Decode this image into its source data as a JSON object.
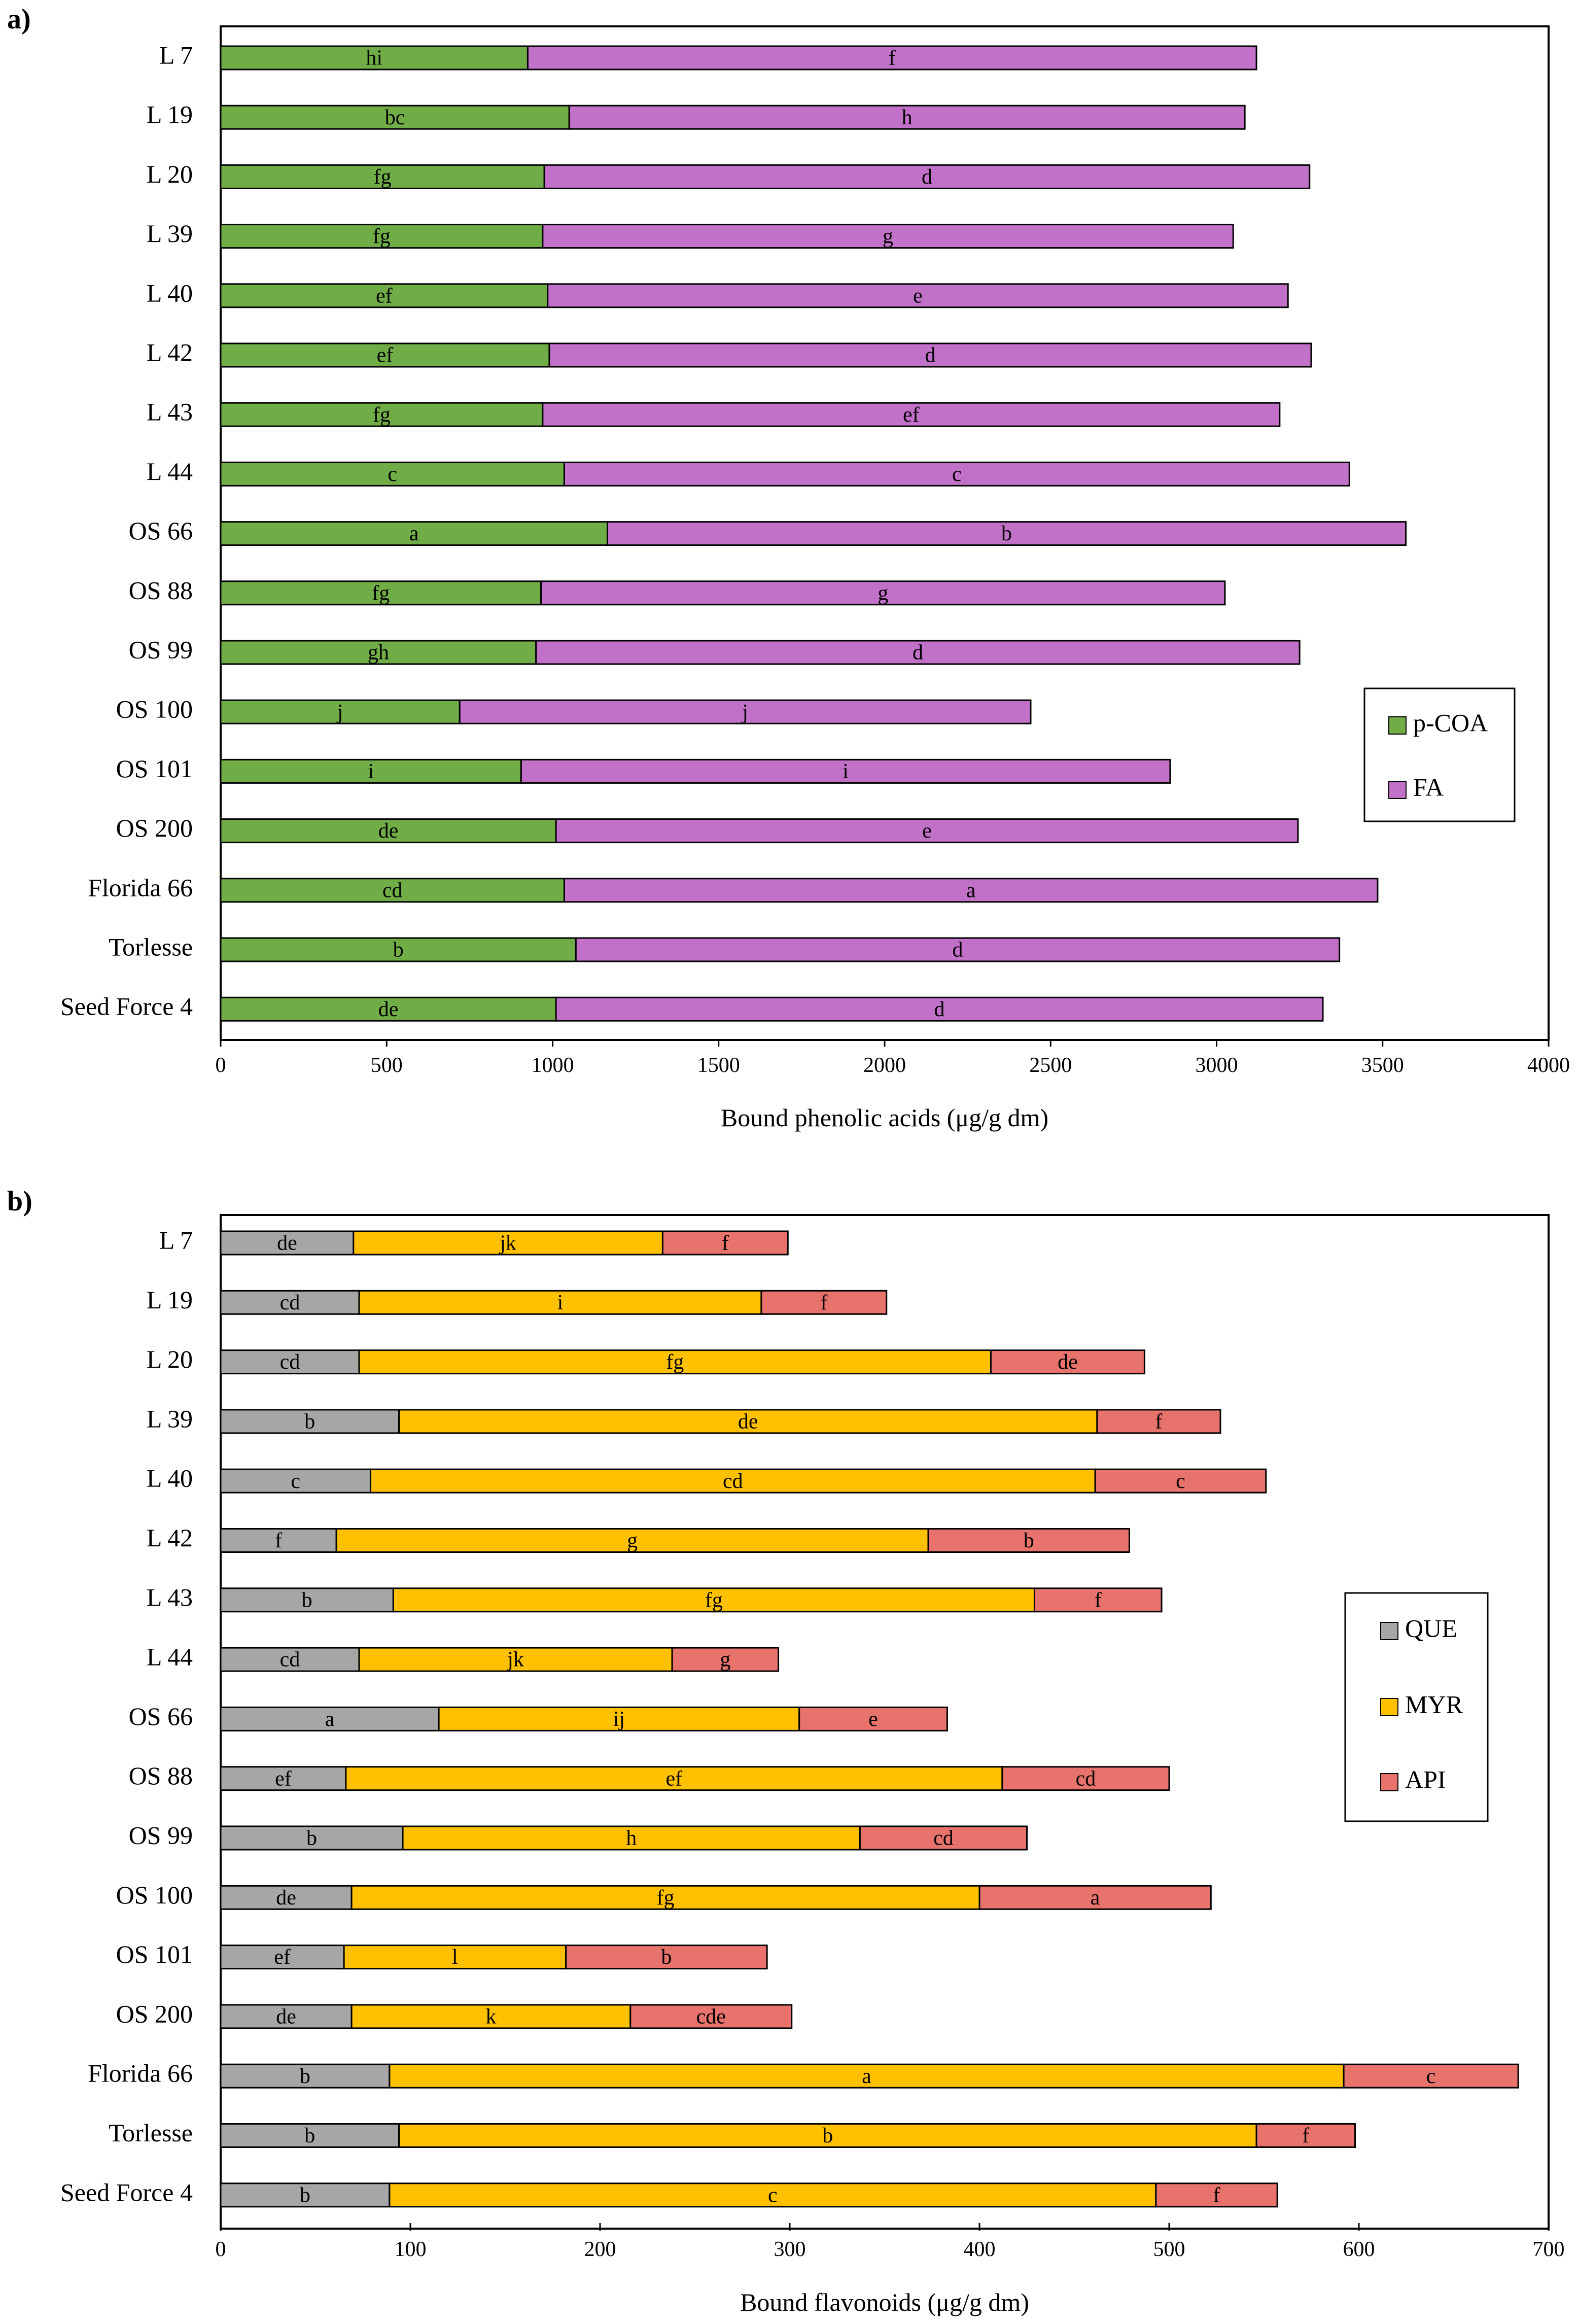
{
  "chart_data": [
    {
      "type": "bar",
      "orientation": "horizontal",
      "stacked": true,
      "panel_label": "a)",
      "xlabel": "Bound phenolic acids (μg/g dm)",
      "ylabel": "",
      "xlim": [
        0,
        4000
      ],
      "xticks": [
        "0",
        "500",
        "1000",
        "1500",
        "2000",
        "2500",
        "3000",
        "3500",
        "4000"
      ],
      "grid": false,
      "legend_position": "right",
      "categories": [
        "L 7",
        "L 19",
        "L 20",
        "L 39",
        "L 40",
        "L 42",
        "L 43",
        "L 44",
        "OS 66",
        "OS 88",
        "OS 99",
        "OS 100",
        "OS 101",
        "OS 200",
        "Florida 66",
        "Torlesse",
        "Seed Force 4"
      ],
      "series": [
        {
          "name": "p-COA",
          "color": "#70ad47",
          "values": [
            925,
            1050,
            975,
            970,
            985,
            990,
            970,
            1035,
            1165,
            965,
            950,
            720,
            905,
            1010,
            1035,
            1070,
            1010
          ],
          "letters": [
            "hi",
            "bc",
            "fg",
            "fg",
            "ef",
            "ef",
            "fg",
            "c",
            "a",
            "fg",
            "gh",
            "j",
            "i",
            "de",
            "cd",
            "b",
            "de"
          ]
        },
        {
          "name": "FA",
          "color": "#c271c9",
          "values": [
            2195,
            2035,
            2305,
            2080,
            2230,
            2295,
            2220,
            2365,
            2405,
            2060,
            2300,
            1720,
            1955,
            2235,
            2450,
            2300,
            2310
          ],
          "letters": [
            "f",
            "h",
            "d",
            "g",
            "e",
            "d",
            "ef",
            "c",
            "b",
            "g",
            "d",
            "j",
            "i",
            "e",
            "a",
            "d",
            "d"
          ]
        }
      ]
    },
    {
      "type": "bar",
      "orientation": "horizontal",
      "stacked": true,
      "panel_label": "b)",
      "xlabel": "Bound flavonoids (μg/g dm)",
      "ylabel": "",
      "xlim": [
        0,
        700
      ],
      "xticks": [
        "0",
        "100",
        "200",
        "300",
        "400",
        "500",
        "600",
        "700"
      ],
      "grid": false,
      "legend_position": "right",
      "categories": [
        "L 7",
        "L 19",
        "L 20",
        "L 39",
        "L 40",
        "L 42",
        "L 43",
        "L 44",
        "OS 66",
        "OS 88",
        "OS 99",
        "OS 100",
        "OS 101",
        "OS 200",
        "Florida 66",
        "Torlesse",
        "Seed Force 4"
      ],
      "series": [
        {
          "name": "QUE",
          "color": "#a6a6a6",
          "values": [
            70,
            73,
            73,
            94,
            79,
            61,
            91,
            73,
            115,
            66,
            96,
            69,
            65,
            69,
            89,
            94,
            89
          ],
          "letters": [
            "de",
            "cd",
            "cd",
            "b",
            "c",
            "f",
            "b",
            "cd",
            "a",
            "ef",
            "b",
            "de",
            "ef",
            "de",
            "b",
            "b",
            "b"
          ]
        },
        {
          "name": "MYR",
          "color": "#ffc000",
          "values": [
            163,
            212,
            333,
            368,
            382,
            312,
            338,
            165,
            190,
            346,
            241,
            331,
            117,
            147,
            503,
            452,
            404
          ],
          "letters": [
            "jk",
            "i",
            "fg",
            "de",
            "cd",
            "g",
            "fg",
            "jk",
            "ij",
            "ef",
            "h",
            "fg",
            "l",
            "k",
            "a",
            "b",
            "c"
          ]
        },
        {
          "name": "API",
          "color": "#e8736c",
          "values": [
            66,
            66,
            81,
            65,
            90,
            106,
            67,
            56,
            78,
            88,
            88,
            122,
            106,
            85,
            92,
            52,
            64
          ],
          "letters": [
            "f",
            "f",
            "de",
            "f",
            "c",
            "b",
            "f",
            "g",
            "e",
            "cd",
            "cd",
            "a",
            "b",
            "cde",
            "c",
            "f",
            "f"
          ]
        }
      ]
    }
  ]
}
